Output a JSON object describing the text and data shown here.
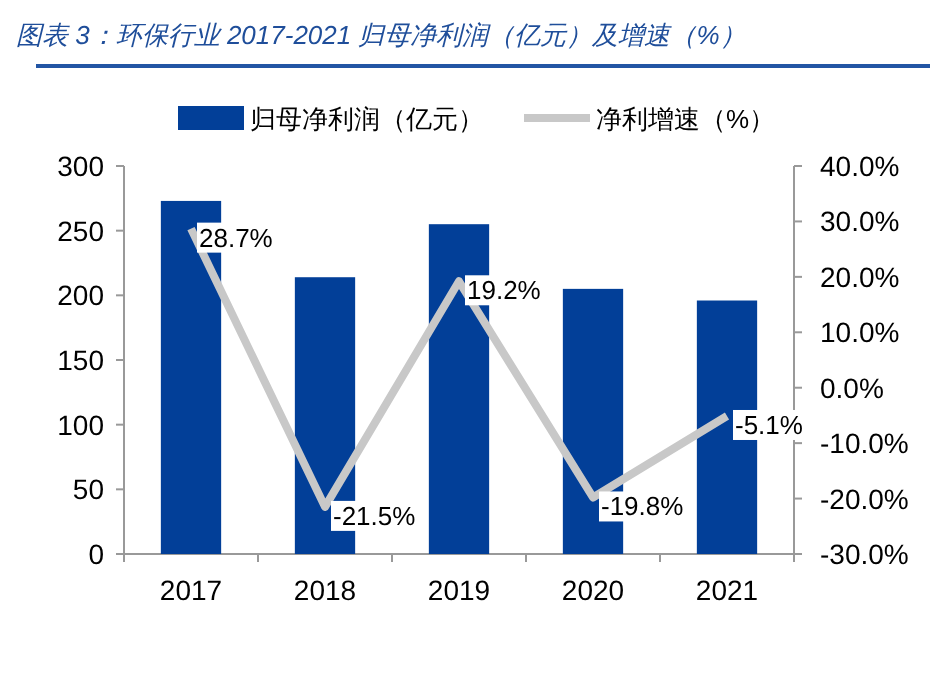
{
  "chart_data": {
    "type": "bar",
    "title": "图表 3：环保行业 2017-2021 归母净利润（亿元）及增速（%）",
    "categories": [
      "2017",
      "2018",
      "2019",
      "2020",
      "2021"
    ],
    "series": [
      {
        "name": "归母净利润（亿元）",
        "type": "bar",
        "color": "#023f98",
        "values": [
          273,
          214,
          255,
          205,
          196
        ]
      },
      {
        "name": "净利增速（%）",
        "type": "line",
        "axis": "y2",
        "color": "#c8c8c8",
        "values": [
          28.7,
          -21.5,
          19.2,
          -19.8,
          -5.1
        ],
        "value_labels": [
          "28.7%",
          "-21.5%",
          "19.2%",
          "-19.8%",
          "-5.1%"
        ]
      }
    ],
    "ylim": [
      0,
      300
    ],
    "yticks": [
      0,
      50,
      100,
      150,
      200,
      250,
      300
    ],
    "y2lim": [
      -30,
      40
    ],
    "y2ticks": [
      {
        "value": -30,
        "label": "-30.0%"
      },
      {
        "value": -20,
        "label": "-20.0%"
      },
      {
        "value": -10,
        "label": "-10.0%"
      },
      {
        "value": 0,
        "label": "0.0%"
      },
      {
        "value": 10,
        "label": "10.0%"
      },
      {
        "value": 20,
        "label": "20.0%"
      },
      {
        "value": 30,
        "label": "30.0%"
      },
      {
        "value": 40,
        "label": "40.0%"
      }
    ],
    "legend": "top",
    "grid": false,
    "marker": "none",
    "line_style": "solid"
  }
}
